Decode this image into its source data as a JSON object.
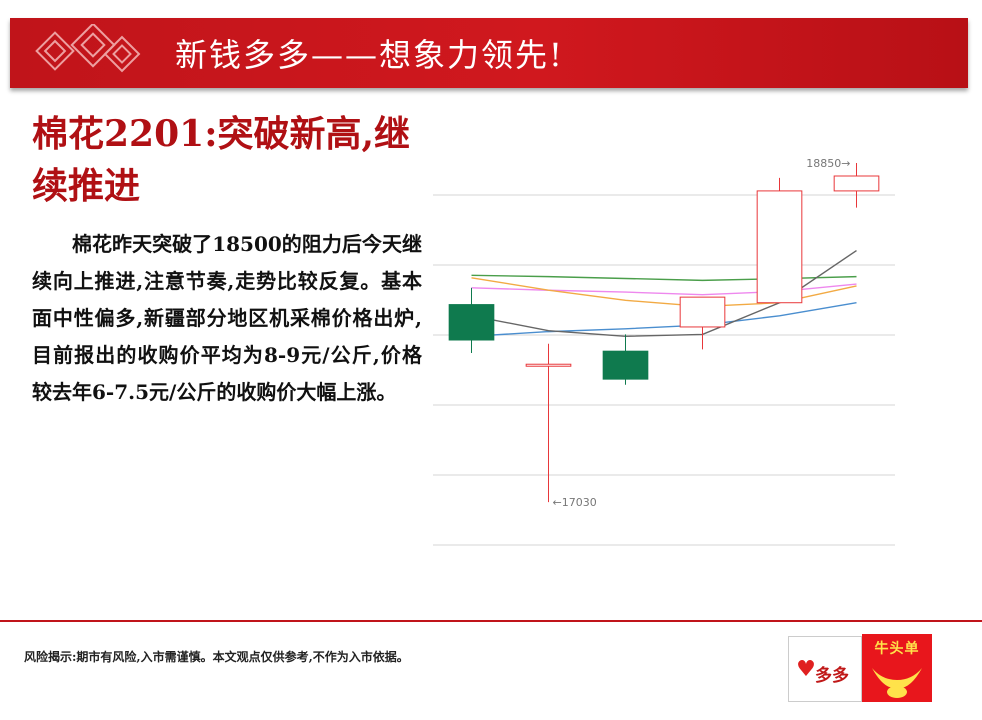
{
  "banner": {
    "title": "新钱多多——想象力领先!"
  },
  "headline": "棉花2201:突破新高,继续推进",
  "body": "棉花昨天突破了18500的阻力后今天继续向上推进,注意节奏,走势比较反复。基本面中性偏多,新疆部分地区机采棉价格出炉,目前报出的收购价平均为8-9元/公斤,价格较去年6-7.5元/公斤的收购价大幅上涨。",
  "footer": {
    "risk_note": "风险揭示:期市有风险,入市需谨慎。本文观点仅供参考,不作为入市依据。"
  },
  "brand": {
    "name": "多多",
    "logo2_text": "牛头单"
  },
  "colors": {
    "up": "#e8373a",
    "down": "#0f7a4e",
    "accent": "#c0141a"
  },
  "chart_data": {
    "type": "candlestick",
    "ylim": [
      16800,
      19000
    ],
    "grid": true,
    "candles": [
      {
        "open": 18090,
        "close": 17900,
        "high": 18180,
        "low": 17830
      },
      {
        "open": 17760,
        "close": 17770,
        "high": 17880,
        "low": 17030
      },
      {
        "open": 17840,
        "close": 17690,
        "high": 17930,
        "low": 17660
      },
      {
        "open": 17970,
        "close": 18130,
        "high": 18130,
        "low": 17850
      },
      {
        "open": 18100,
        "close": 18700,
        "high": 18770,
        "low": 18100
      },
      {
        "open": 18700,
        "close": 18780,
        "high": 18850,
        "low": 18610
      }
    ],
    "annotations": [
      {
        "label": "18850→",
        "candle": 5,
        "value": 18850,
        "anchor": "left"
      },
      {
        "label": "←17030",
        "candle": 1,
        "value": 17030,
        "anchor": "right"
      }
    ],
    "lines": [
      {
        "color": "#4a9e4a",
        "values": [
          18247,
          18240,
          18230,
          18220,
          18229,
          18240
        ]
      },
      {
        "color": "#ee88ee",
        "values": [
          18180,
          18167,
          18157,
          18143,
          18160,
          18200
        ]
      },
      {
        "color": "#f2aa44",
        "values": [
          18234,
          18167,
          18113,
          18080,
          18100,
          18190
        ]
      },
      {
        "color": "#4a8ecf",
        "values": [
          17920,
          17945,
          17960,
          17980,
          18030,
          18100
        ]
      },
      {
        "color": "#666666",
        "values": [
          18030,
          17950,
          17920,
          17930,
          18100,
          18380
        ]
      }
    ]
  }
}
